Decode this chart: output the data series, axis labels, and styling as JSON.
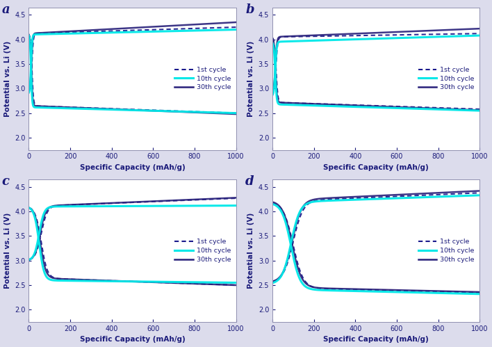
{
  "panels": [
    "a",
    "b",
    "c",
    "d"
  ],
  "xlabel": "Specific Capacity (mAh/g)",
  "ylabel": "Potential vs. Li (V)",
  "xlim": [
    0,
    1000
  ],
  "ylim": [
    1.75,
    4.65
  ],
  "yticks": [
    2.0,
    2.5,
    3.0,
    3.5,
    4.0,
    4.5
  ],
  "xticks": [
    0,
    200,
    400,
    600,
    800,
    1000
  ],
  "legend_labels": [
    "1st cycle",
    "10th cycle",
    "30th cycle"
  ],
  "colors": {
    "1st": "#1a1a8c",
    "10th": "#00e8e8",
    "30th": "#28207a"
  },
  "bg_color": "#dcdcec",
  "panel_label_color": "#1a1a7a",
  "panels_cfg": {
    "a": {
      "1st": {
        "ch_start": 2.95,
        "ch_plat": 4.12,
        "ch_end": 4.25,
        "dis_start": 4.12,
        "dis_plat": 2.65,
        "dis_end": 2.5,
        "x_trans": 30,
        "x_cap": 1000
      },
      "10th": {
        "ch_start": 2.9,
        "ch_plat": 4.1,
        "ch_end": 4.2,
        "dis_start": 4.1,
        "dis_plat": 2.62,
        "dis_end": 2.5,
        "x_trans": 22,
        "x_cap": 1000
      },
      "30th": {
        "ch_start": 2.95,
        "ch_plat": 4.12,
        "ch_end": 4.35,
        "dis_start": 4.12,
        "dis_plat": 2.65,
        "dis_end": 2.48,
        "x_trans": 25,
        "x_cap": 1000
      }
    },
    "b": {
      "1st": {
        "ch_start": 2.95,
        "ch_plat": 4.05,
        "ch_end": 4.12,
        "dis_start": 4.05,
        "dis_plat": 2.72,
        "dis_end": 2.58,
        "x_trans": 35,
        "x_cap": 1000
      },
      "10th": {
        "ch_start": 2.85,
        "ch_plat": 3.95,
        "ch_end": 4.08,
        "dis_start": 3.95,
        "dis_plat": 2.68,
        "dis_end": 2.55,
        "x_trans": 28,
        "x_cap": 1000
      },
      "30th": {
        "ch_start": 2.95,
        "ch_plat": 4.05,
        "ch_end": 4.22,
        "dis_start": 4.05,
        "dis_plat": 2.72,
        "dis_end": 2.56,
        "x_trans": 30,
        "x_cap": 1000
      }
    },
    "c": {
      "1st": {
        "ch_start": 3.0,
        "ch_plat": 4.1,
        "ch_end": 4.27,
        "dis_start": 4.1,
        "dis_plat": 2.65,
        "dis_end": 2.5,
        "x_trans": 120,
        "x_cap": 1000
      },
      "10th": {
        "ch_start": 3.0,
        "ch_plat": 4.1,
        "ch_end": 4.12,
        "dis_start": 4.1,
        "dis_plat": 2.6,
        "dis_end": 2.55,
        "x_trans": 100,
        "x_cap": 1000
      },
      "30th": {
        "ch_start": 3.0,
        "ch_plat": 4.1,
        "ch_end": 4.28,
        "dis_start": 4.1,
        "dis_plat": 2.65,
        "dis_end": 2.5,
        "x_trans": 110,
        "x_cap": 1000
      }
    },
    "d": {
      "1st": {
        "ch_start": 2.55,
        "ch_plat": 4.2,
        "ch_end": 4.38,
        "dis_start": 4.2,
        "dis_plat": 2.45,
        "dis_end": 2.35,
        "x_trans": 200,
        "x_cap": 1000
      },
      "10th": {
        "ch_start": 2.52,
        "ch_plat": 4.18,
        "ch_end": 4.33,
        "dis_start": 4.18,
        "dis_plat": 2.42,
        "dis_end": 2.32,
        "x_trans": 180,
        "x_cap": 1000
      },
      "30th": {
        "ch_start": 2.55,
        "ch_plat": 4.22,
        "ch_end": 4.42,
        "dis_start": 4.22,
        "dis_plat": 2.46,
        "dis_end": 2.36,
        "x_trans": 190,
        "x_cap": 1000
      }
    }
  }
}
